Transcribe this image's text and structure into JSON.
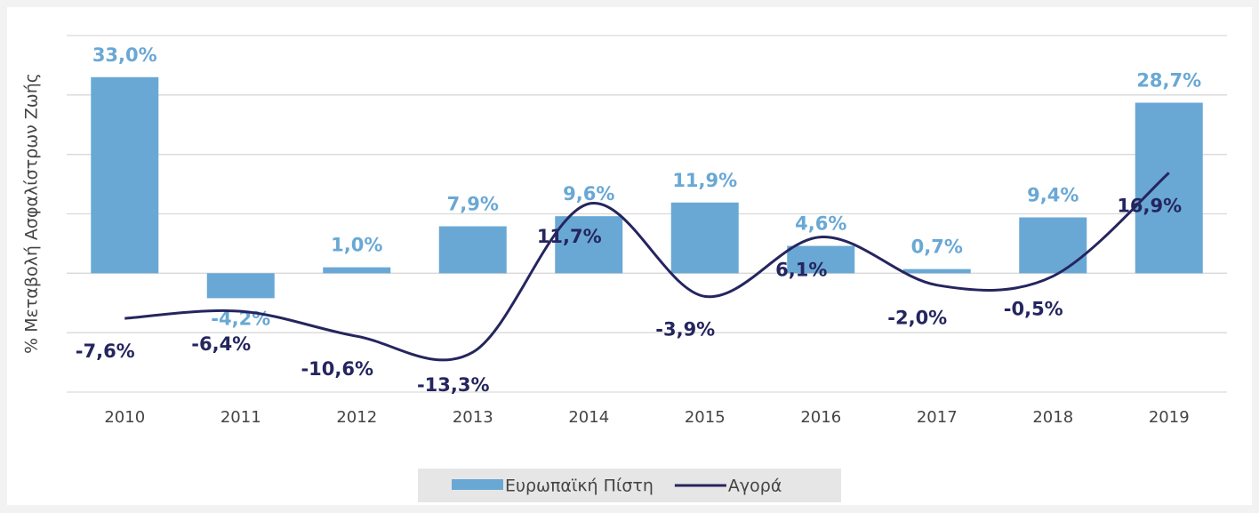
{
  "chart_data": {
    "type": "bar-line",
    "y_label": "% Μεταβολή Ασφαλίστρων Ζωής",
    "categories": [
      "2010",
      "2011",
      "2012",
      "2013",
      "2014",
      "2015",
      "2016",
      "2017",
      "2018",
      "2019"
    ],
    "series": [
      {
        "name": "Ευρωπαϊκή Πίστη",
        "type": "bar",
        "color": "#69a8d5",
        "values": [
          33.0,
          -4.2,
          1.0,
          7.9,
          9.6,
          11.9,
          4.6,
          0.7,
          9.4,
          28.7
        ],
        "value_labels": [
          "33,0%",
          "-4,2%",
          "1,0%",
          "7,9%",
          "9,6%",
          "11,9%",
          "4,6%",
          "0,7%",
          "9,4%",
          "28,7%"
        ]
      },
      {
        "name": "Αγορά",
        "type": "line",
        "color": "#25255f",
        "values": [
          -7.6,
          -6.4,
          -10.6,
          -13.3,
          11.7,
          -3.9,
          6.1,
          -2.0,
          -0.5,
          16.9
        ],
        "value_labels": [
          "-7,6%",
          "-6,4%",
          "-10,6%",
          "-13,3%",
          "11,7%",
          "-3,9%",
          "6,1%",
          "-2,0%",
          "-0,5%",
          "16,9%"
        ]
      }
    ],
    "ylim": [
      -20,
      40
    ],
    "yticks": [
      -20,
      -10,
      0,
      10,
      20,
      30,
      40
    ],
    "grid": true,
    "legend": "bottom"
  }
}
